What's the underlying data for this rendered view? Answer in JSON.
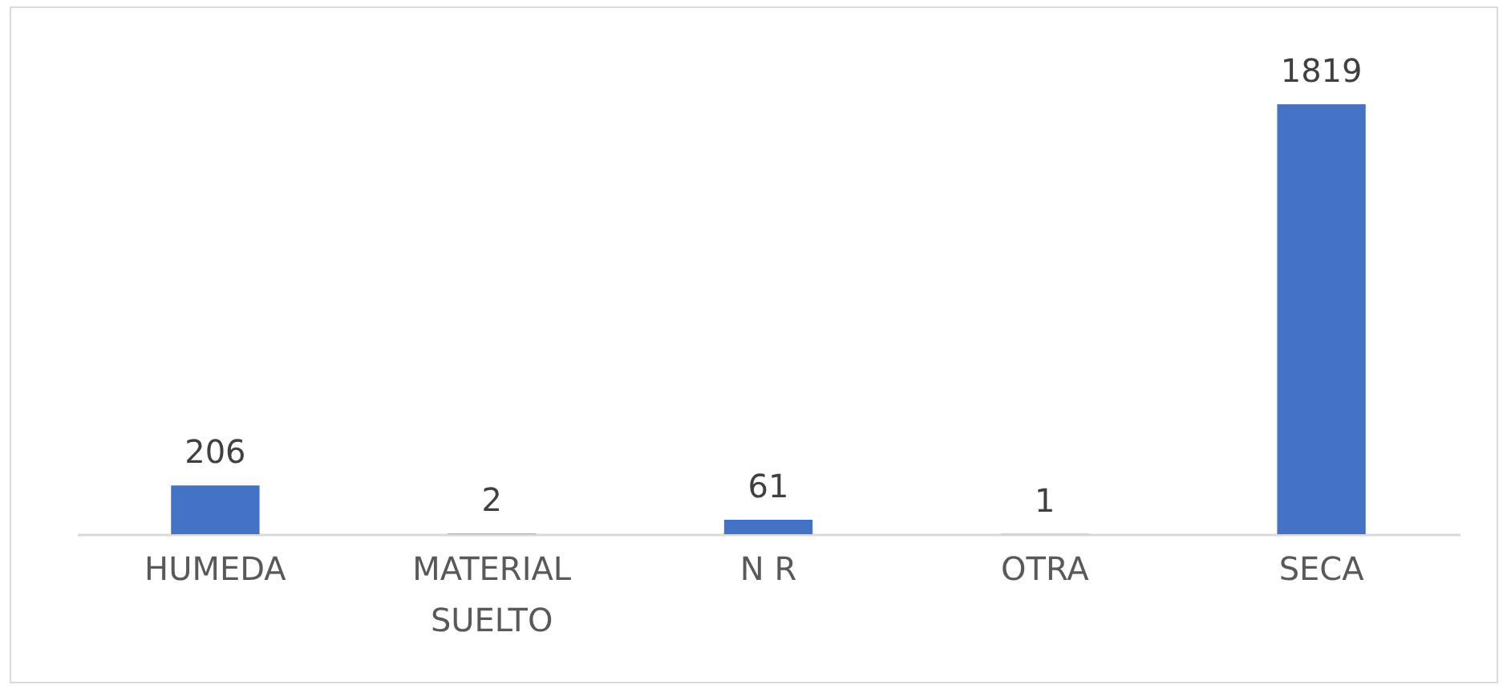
{
  "chart_data": {
    "type": "bar",
    "categories": [
      "HUMEDA",
      "MATERIAL SUELTO",
      "N R",
      "OTRA",
      "SECA"
    ],
    "values": [
      206,
      2,
      61,
      1,
      1819
    ],
    "color": "#4472c4",
    "data_labels": true,
    "grid": false
  }
}
